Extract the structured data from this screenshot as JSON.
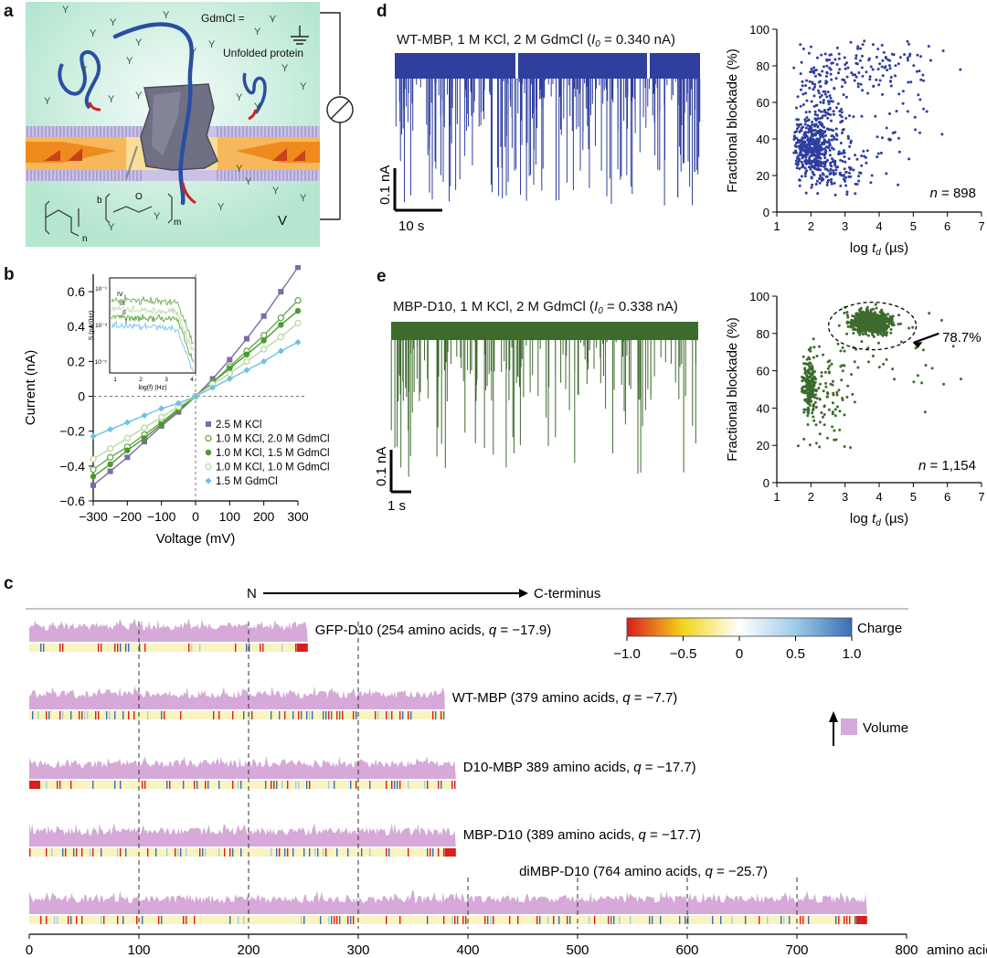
{
  "panel_labels": {
    "a": "a",
    "b": "b",
    "c": "c",
    "d": "d",
    "e": "e"
  },
  "panel_a": {
    "gdmcl_label": "GdmCl =",
    "unfolded_label": "Unfolded protein",
    "voltage_label": "V",
    "polymer_n": "n",
    "polymer_b": "b",
    "polymer_m": "m",
    "polymer_o": "O",
    "colors": {
      "bg": "#bfe9d6",
      "bg_center": "#eefaf5",
      "membrane": "#a99fcf",
      "support": "#f3a13a",
      "protein": "#2a4ea3",
      "tail": "#d42020",
      "pore": "#6f7083"
    }
  },
  "panel_b": {
    "ylabel": "Current (nA)",
    "xlabel": "Voltage (mV)",
    "inset": {
      "ylabel": "S (pA²/Hz)",
      "xlabel": "log(f) (Hz)",
      "yticks": [
        "10⁻¹",
        "10⁻³",
        "10⁻⁵"
      ],
      "xticks": [
        "1",
        "2",
        "3",
        "4"
      ],
      "roman": [
        "IV",
        "III",
        "II",
        "I"
      ]
    }
  },
  "panel_c": {
    "n_label": "N",
    "c_label": "C-terminus",
    "xunit": "amino acids",
    "charge_label": "Charge",
    "charge_ticks": [
      "−1.0",
      "−0.5",
      "0",
      "0.5",
      "1.0"
    ],
    "volume_label": "Volume",
    "tracks": [
      {
        "name": "GFP-D10 (254 amino acids, ",
        "q": "q",
        "qv": " = −17.9)"
      },
      {
        "name": "WT-MBP (379 amino acids, ",
        "q": "q",
        "qv": " = −7.7)"
      },
      {
        "name": "D10-MBP 389 amino acids, ",
        "q": "q",
        "qv": " = −17.7)"
      },
      {
        "name": "MBP-D10 (389 amino acids, ",
        "q": "q",
        "qv": " = −17.7)"
      },
      {
        "name": "diMBP-D10 (764 amino acids, ",
        "q": "q",
        "qv": " = −25.7)"
      }
    ],
    "colors": {
      "volume": "#d6a9d9",
      "negative": "#d81e1e",
      "positive": "#3a6db5",
      "neutral": "#f8f3c0"
    }
  },
  "panel_d": {
    "trace_title": "WT-MBP, 1 M KCl, 2 M GdmCl (",
    "i0_sym": "I",
    "i0_sub": "0",
    "i0_value": " = 0.340 nA)",
    "scale_y": "0.1 nA",
    "scale_x": "10 s",
    "n_label": "n",
    "n_value": " = 898",
    "color": "#2f3f9e"
  },
  "panel_e": {
    "trace_title": "MBP-D10, 1 M KCl, 2 M GdmCl (",
    "i0_sym": "I",
    "i0_sub": "0",
    "i0_value": " = 0.338 nA)",
    "scale_y": "0.1 nA",
    "scale_x": "1 s",
    "n_label": "n",
    "n_value": " = 1,154",
    "annotation": "78.7%",
    "color": "#3d6b2e"
  },
  "chart_data": [
    {
      "id": "b",
      "type": "line",
      "xlabel": "Voltage (mV)",
      "ylabel": "Current (nA)",
      "xlim": [
        -300,
        300
      ],
      "ylim": [
        -0.6,
        0.7
      ],
      "xticks": [
        -300,
        -200,
        -100,
        0,
        100,
        200,
        300
      ],
      "yticks": [
        -0.6,
        -0.4,
        -0.2,
        0,
        0.2,
        0.4,
        0.6
      ],
      "x": [
        -300,
        -250,
        -200,
        -150,
        -100,
        -50,
        0,
        50,
        100,
        150,
        200,
        250,
        300
      ],
      "series": [
        {
          "name": "2.5 M KCl",
          "color": "#7f6aa8",
          "marker": "square",
          "values": [
            -0.51,
            -0.43,
            -0.35,
            -0.26,
            -0.17,
            -0.09,
            0,
            0.1,
            0.21,
            0.33,
            0.46,
            0.6,
            0.74
          ]
        },
        {
          "name": "1.0 M KCl, 2.0 M GdmCl",
          "color": "#6aa84f",
          "marker": "open",
          "values": [
            -0.42,
            -0.35,
            -0.29,
            -0.22,
            -0.15,
            -0.07,
            0,
            0.08,
            0.17,
            0.26,
            0.35,
            0.45,
            0.55
          ]
        },
        {
          "name": "1.0 M KCl, 1.5 M GdmCl",
          "color": "#4a9a2c",
          "marker": "circle",
          "values": [
            -0.46,
            -0.39,
            -0.31,
            -0.24,
            -0.16,
            -0.08,
            0,
            0.08,
            0.16,
            0.24,
            0.32,
            0.41,
            0.49
          ]
        },
        {
          "name": "1.0 M KCl, 1.0 M GdmCl",
          "color": "#b8d8a0",
          "marker": "open",
          "values": [
            -0.36,
            -0.3,
            -0.24,
            -0.18,
            -0.12,
            -0.06,
            0,
            0.07,
            0.13,
            0.2,
            0.27,
            0.34,
            0.42
          ]
        },
        {
          "name": "1.5 M GdmCl",
          "color": "#6ec1e4",
          "marker": "diamond",
          "values": [
            -0.23,
            -0.19,
            -0.15,
            -0.11,
            -0.07,
            -0.04,
            0,
            0.05,
            0.1,
            0.15,
            0.2,
            0.26,
            0.31
          ]
        }
      ]
    },
    {
      "id": "d-scatter",
      "type": "scatter",
      "xlabel": "log t_d (µs)",
      "ylabel": "Fractional blockade (%)",
      "xlim": [
        1,
        7
      ],
      "ylim": [
        0,
        100
      ],
      "xticks": [
        1,
        2,
        3,
        4,
        5,
        6,
        7
      ],
      "yticks": [
        0,
        20,
        40,
        60,
        80,
        100
      ],
      "n": 898,
      "clusters": [
        {
          "cx": 2.0,
          "cy": 35,
          "sx": 0.3,
          "sy": 8,
          "count": 420
        },
        {
          "cx": 2.3,
          "cy": 55,
          "sx": 0.4,
          "sy": 18,
          "count": 200
        },
        {
          "cx": 2.8,
          "cy": 22,
          "sx": 0.4,
          "sy": 7,
          "count": 80
        },
        {
          "cx": 3.8,
          "cy": 80,
          "sx": 1.0,
          "sy": 7,
          "count": 110
        },
        {
          "cx": 4.0,
          "cy": 50,
          "sx": 1.1,
          "sy": 18,
          "count": 60
        }
      ]
    },
    {
      "id": "e-scatter",
      "type": "scatter",
      "xlabel": "log t_d (µs)",
      "ylabel": "Fractional blockade (%)",
      "xlim": [
        1,
        7
      ],
      "ylim": [
        0,
        100
      ],
      "xticks": [
        1,
        2,
        3,
        4,
        5,
        6,
        7
      ],
      "yticks": [
        0,
        20,
        40,
        60,
        80,
        100
      ],
      "n": 1154,
      "annotation": "78.7%",
      "clusters": [
        {
          "cx": 3.75,
          "cy": 86,
          "sx": 0.28,
          "sy": 2.8,
          "count": 820
        },
        {
          "cx": 1.95,
          "cy": 52,
          "sx": 0.1,
          "sy": 7,
          "count": 200
        },
        {
          "cx": 2.5,
          "cy": 48,
          "sx": 0.45,
          "sy": 14,
          "count": 100
        },
        {
          "cx": 4.5,
          "cy": 72,
          "sx": 1.1,
          "sy": 14,
          "count": 34
        }
      ]
    },
    {
      "id": "c",
      "type": "area",
      "xlim": [
        0,
        800
      ],
      "xticks": [
        0,
        100,
        200,
        300,
        400,
        500,
        600,
        700,
        800
      ],
      "charge_scale": [
        -1.0,
        1.0
      ],
      "tracks": [
        {
          "name": "GFP-D10",
          "length": 254,
          "q": -17.9,
          "d10": "end"
        },
        {
          "name": "WT-MBP",
          "length": 379,
          "q": -7.7,
          "d10": "none"
        },
        {
          "name": "D10-MBP",
          "length": 389,
          "q": -17.7,
          "d10": "start"
        },
        {
          "name": "MBP-D10",
          "length": 389,
          "q": -17.7,
          "d10": "end"
        },
        {
          "name": "diMBP-D10",
          "length": 764,
          "q": -25.7,
          "d10": "end"
        }
      ]
    }
  ]
}
